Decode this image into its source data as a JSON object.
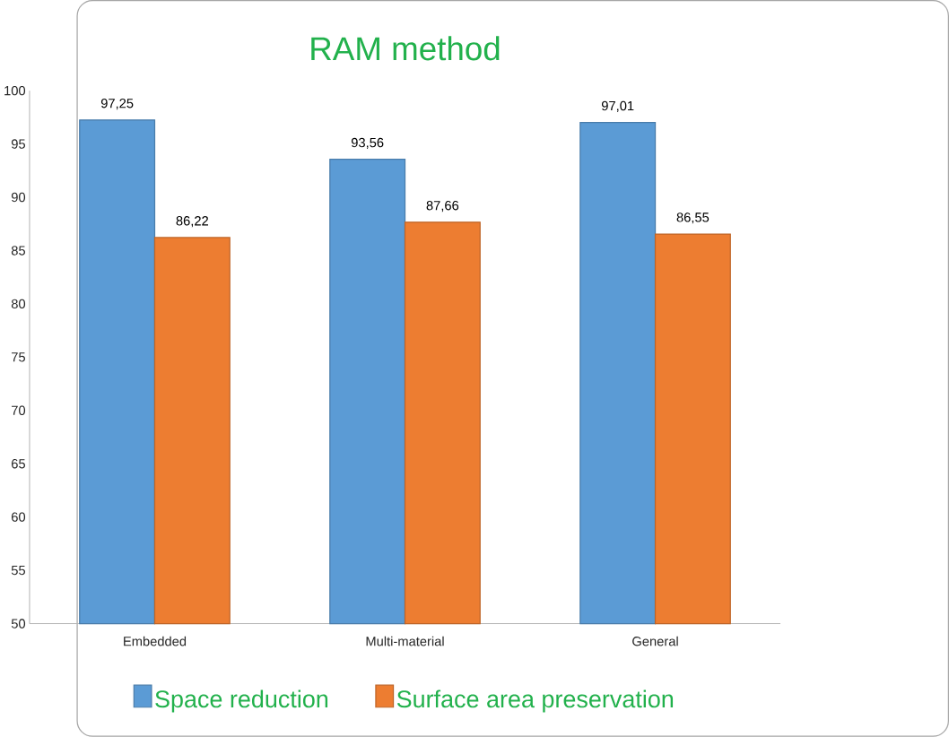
{
  "chart_data": {
    "type": "bar",
    "title": "RAM method",
    "categories": [
      "Embedded",
      "Multi-material",
      "General"
    ],
    "series": [
      {
        "name": "Space reduction",
        "color": "#5b9bd5",
        "values": [
          97.25,
          93.56,
          97.01
        ],
        "value_labels": [
          "97,25",
          "93,56",
          "97,01"
        ]
      },
      {
        "name": "Surface area preservation",
        "color": "#ed7d31",
        "values": [
          86.22,
          87.66,
          86.55
        ],
        "value_labels": [
          "86,22",
          "87,66",
          "86,55"
        ]
      }
    ],
    "ylim": [
      50,
      100
    ],
    "yticks": [
      50,
      55,
      60,
      65,
      70,
      75,
      80,
      85,
      90,
      95,
      100
    ],
    "legend": "bottom"
  }
}
